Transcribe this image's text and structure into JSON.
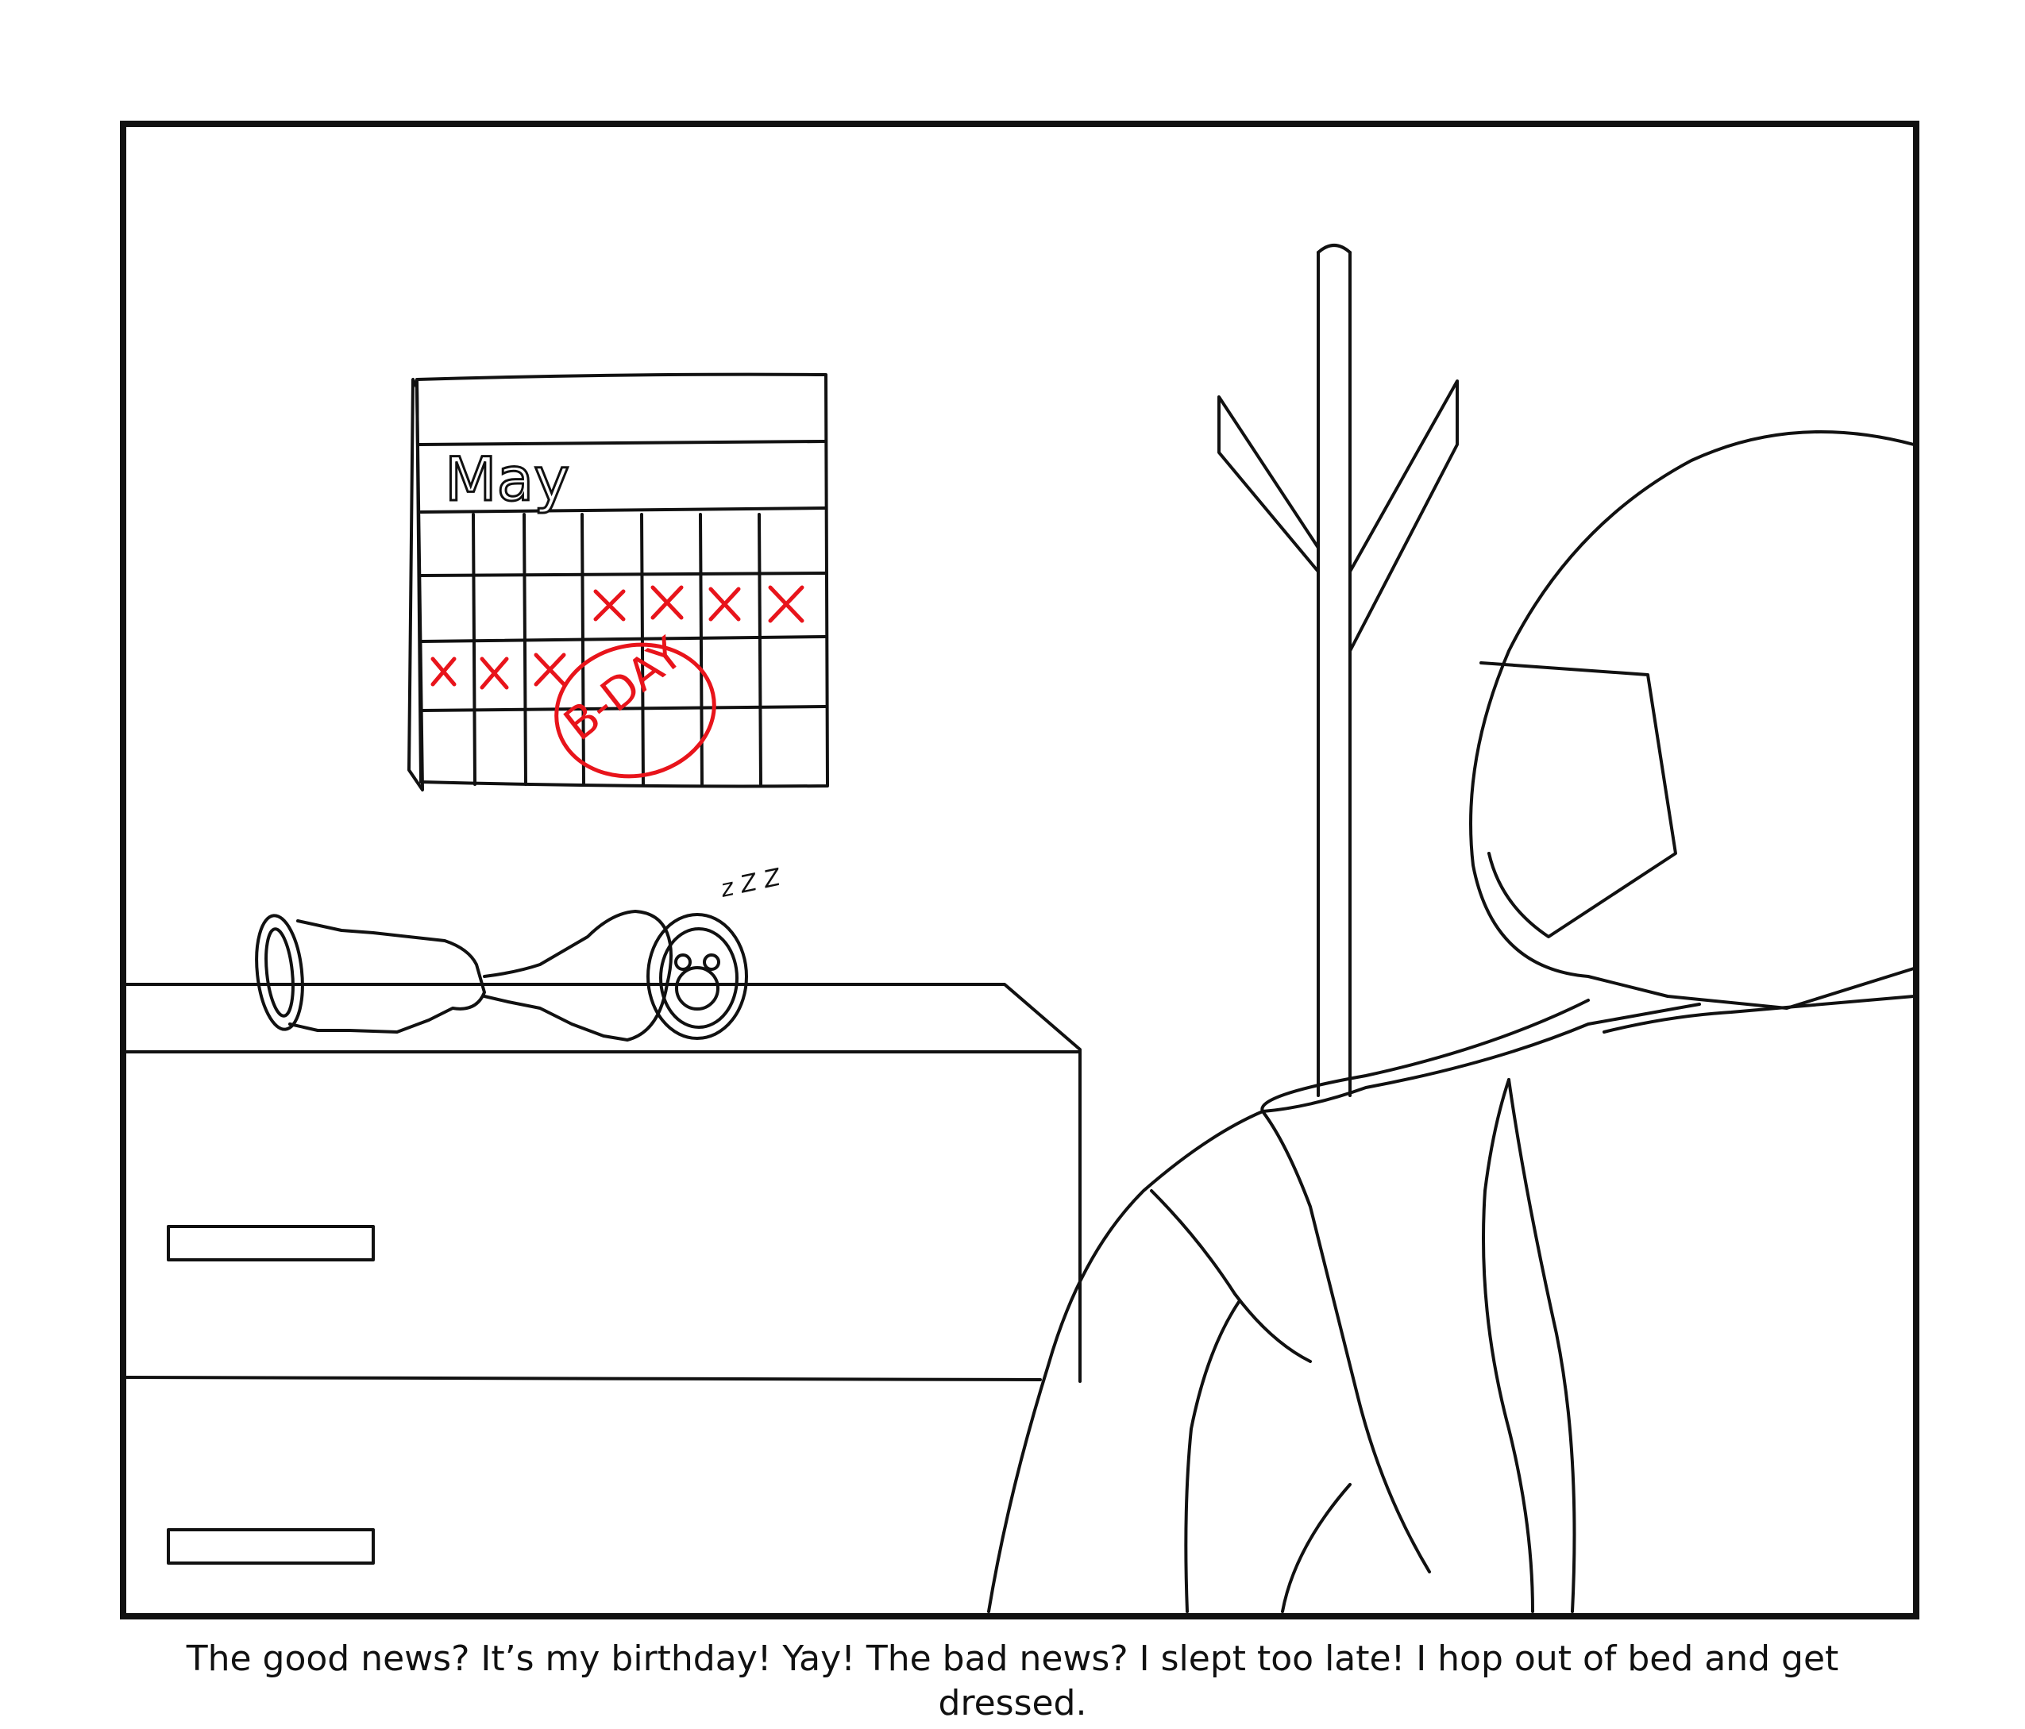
{
  "panel": {
    "calendar": {
      "month": "May",
      "circled_label": "B-DAY",
      "crossed_days_row2": 4,
      "crossed_days_row3": 3
    },
    "sleep_text": "z Z Z"
  },
  "caption": "The good news? It’s my birthday! Yay! The bad news? I slept too late! I hop out of bed and get dressed.",
  "colors": {
    "ink": "#111111",
    "marker_red": "#e8141b",
    "paper": "#ffffff"
  }
}
